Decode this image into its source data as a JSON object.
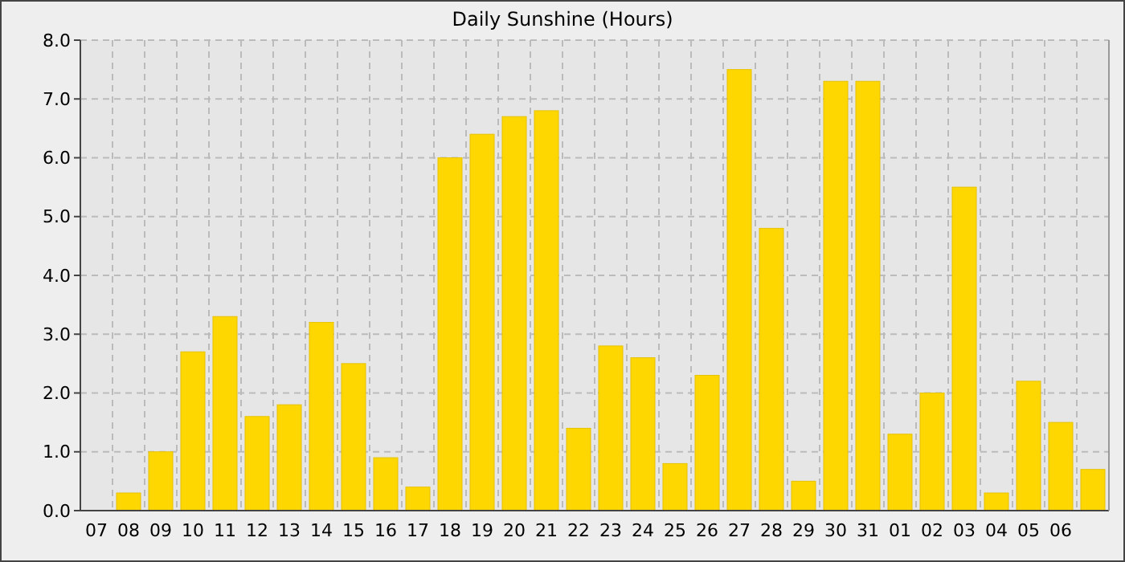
{
  "chart_data": {
    "type": "bar",
    "title": "Daily Sunshine (Hours)",
    "categories": [
      "07",
      "08",
      "09",
      "10",
      "11",
      "12",
      "13",
      "14",
      "15",
      "16",
      "17",
      "18",
      "19",
      "20",
      "21",
      "22",
      "23",
      "24",
      "25",
      "26",
      "27",
      "28",
      "29",
      "30",
      "31",
      "01",
      "02",
      "03",
      "04",
      "05",
      "06",
      null
    ],
    "values": [
      0,
      0.3,
      1.0,
      2.7,
      3.3,
      1.6,
      1.8,
      3.2,
      2.5,
      0.9,
      0.4,
      6.0,
      6.4,
      6.7,
      6.8,
      1.4,
      2.8,
      2.6,
      0.8,
      2.3,
      7.5,
      4.8,
      0.5,
      7.3,
      7.3,
      1.3,
      2.0,
      5.5,
      0.3,
      2.2,
      1.5,
      0.7
    ],
    "color": "#ffd700",
    "ylim": [
      0,
      8
    ],
    "yticks": [
      {
        "value": 0,
        "label": "0.0"
      },
      {
        "value": 1,
        "label": "1.0"
      },
      {
        "value": 2,
        "label": "2.0"
      },
      {
        "value": 3,
        "label": "3.0"
      },
      {
        "value": 4,
        "label": "4.0"
      },
      {
        "value": 5,
        "label": "5.0"
      },
      {
        "value": 6,
        "label": "6.0"
      },
      {
        "value": 7,
        "label": "7.0"
      },
      {
        "value": 8,
        "label": "8.0"
      }
    ],
    "grid": true
  }
}
